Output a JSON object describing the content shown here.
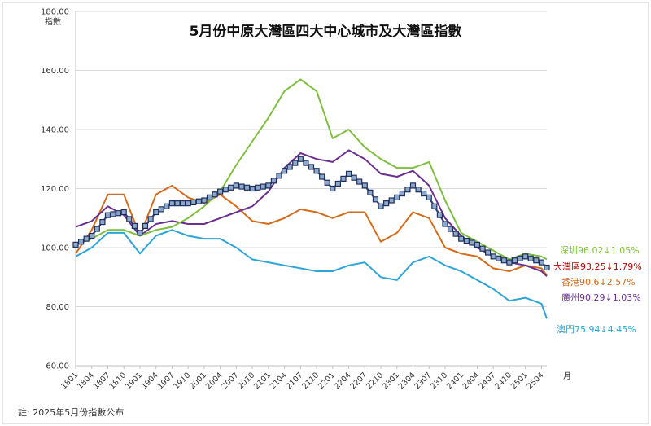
{
  "chart_data": {
    "type": "line",
    "title": "5月份中原大灣區四大中心城市及大灣區指數",
    "ylabel": "指數",
    "xlabel": "月",
    "ylim": [
      60,
      180
    ],
    "yticks": [
      "60.00",
      "80.00",
      "100.00",
      "120.00",
      "140.00",
      "160.00",
      "180.00"
    ],
    "xticks": [
      "1801",
      "1804",
      "1807",
      "1810",
      "1901",
      "1904",
      "1907",
      "1910",
      "2001",
      "2004",
      "2007",
      "2010",
      "2101",
      "2104",
      "2107",
      "2110",
      "2201",
      "2204",
      "2207",
      "2210",
      "2301",
      "2304",
      "2307",
      "2310",
      "2401",
      "2404",
      "2407",
      "2410",
      "2501",
      "2504"
    ],
    "grid": true,
    "legend": "right",
    "note": "註: 2025年5月份指數公布",
    "x_anchor_months": [
      0,
      3,
      6,
      9,
      12,
      15,
      18,
      21,
      24,
      27,
      30,
      33,
      36,
      39,
      42,
      45,
      48,
      51,
      54,
      57,
      60,
      63,
      66,
      69,
      72,
      75,
      78,
      81,
      84,
      87,
      88
    ],
    "series": [
      {
        "name": "深圳",
        "color": "#7fbf3f",
        "label": "深圳96.02↓1.05%",
        "values": [
          101,
          103,
          106,
          106,
          104,
          106,
          107,
          110,
          114,
          119,
          128,
          136,
          144,
          153,
          157,
          153,
          137,
          140,
          134,
          130,
          127,
          127,
          129,
          116,
          105,
          102,
          99,
          96,
          98,
          97,
          96.02
        ]
      },
      {
        "name": "大灣區",
        "color": "#2f3f7f",
        "label": "大灣區93.25↓1.79%",
        "values": [
          101,
          104,
          111,
          112,
          105,
          112,
          115,
          115,
          116,
          119,
          121,
          120,
          121,
          126,
          130,
          126,
          120,
          125,
          121,
          114,
          117,
          121,
          117,
          108,
          103,
          101,
          97,
          95,
          97,
          95,
          93.25
        ]
      },
      {
        "name": "香港",
        "color": "#d46a1a",
        "label": "香港90.6↓2.57%",
        "values": [
          98,
          106,
          118,
          118,
          104,
          118,
          121,
          117,
          115,
          118,
          114,
          109,
          108,
          110,
          113,
          112,
          110,
          112,
          112,
          102,
          105,
          112,
          110,
          100,
          98,
          97,
          93,
          92,
          94,
          93,
          90.6
        ]
      },
      {
        "name": "廣州",
        "color": "#6b2f8f",
        "label": "廣州90.29↓1.03%",
        "values": [
          107,
          109,
          114,
          111,
          104,
          108,
          109,
          108,
          108,
          110,
          112,
          114,
          119,
          127,
          132,
          130,
          129,
          133,
          130,
          125,
          124,
          126,
          121,
          110,
          104,
          100,
          97,
          95,
          94,
          92,
          90.29
        ]
      },
      {
        "name": "澳門",
        "color": "#2fa5d6",
        "label": "澳門75.94↓4.45%",
        "values": [
          97,
          100,
          105,
          105,
          98,
          104,
          106,
          104,
          103,
          103,
          100,
          96,
          95,
          94,
          93,
          92,
          92,
          94,
          95,
          90,
          89,
          95,
          97,
          94,
          92,
          89,
          86,
          82,
          83,
          81,
          75.94
        ]
      }
    ]
  }
}
